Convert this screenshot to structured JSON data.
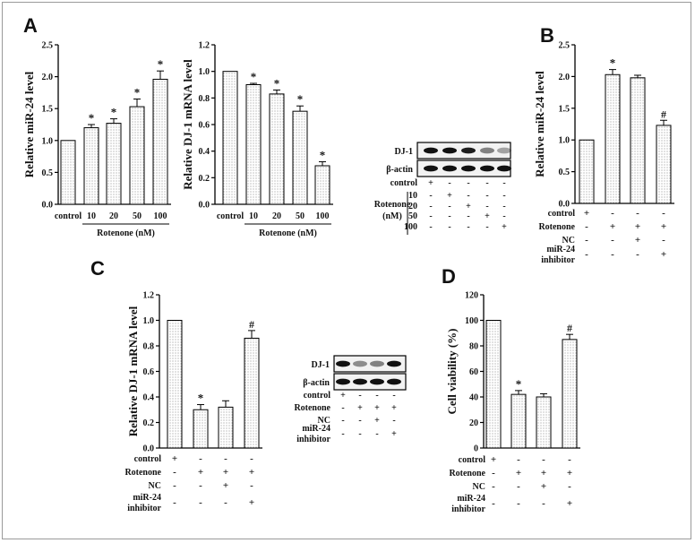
{
  "panels": {
    "A": "A",
    "B": "B",
    "C": "C",
    "D": "D"
  },
  "chart_data": [
    {
      "id": "A1",
      "type": "bar",
      "ylabel": "Relative miR-24 level",
      "categories": [
        "control",
        "10",
        "20",
        "50",
        "100"
      ],
      "group_label": "Rotenone (nM)",
      "values": [
        1.0,
        1.2,
        1.27,
        1.53,
        1.96
      ],
      "errors": [
        0.0,
        0.05,
        0.07,
        0.12,
        0.13
      ],
      "marks": [
        "",
        "*",
        "*",
        "*",
        "*"
      ],
      "ylim": [
        0.0,
        2.5
      ],
      "yticks": [
        "0.0",
        "0.5",
        "1.0",
        "1.5",
        "2.0",
        "2.5"
      ]
    },
    {
      "id": "A2",
      "type": "bar",
      "ylabel": "Relative DJ-1 mRNA level",
      "categories": [
        "control",
        "10",
        "20",
        "50",
        "100"
      ],
      "group_label": "Rotenone (nM)",
      "values": [
        1.0,
        0.9,
        0.83,
        0.7,
        0.29
      ],
      "errors": [
        0.0,
        0.01,
        0.03,
        0.04,
        0.03
      ],
      "marks": [
        "",
        "*",
        "*",
        "*",
        "*"
      ],
      "ylim": [
        0.0,
        1.2
      ],
      "yticks": [
        "0.0",
        "0.2",
        "0.4",
        "0.6",
        "0.8",
        "1.0",
        "1.2"
      ]
    },
    {
      "id": "B",
      "type": "bar",
      "ylabel": "Relative miR-24 level",
      "values": [
        1.0,
        2.03,
        1.98,
        1.23
      ],
      "errors": [
        0.0,
        0.08,
        0.04,
        0.08
      ],
      "marks": [
        "",
        "*",
        "",
        "#"
      ],
      "ylim": [
        0.0,
        2.5
      ],
      "yticks": [
        "0.0",
        "0.5",
        "1.0",
        "1.5",
        "2.0",
        "2.5"
      ],
      "conditions": [
        {
          "label": "control",
          "signs": [
            "+",
            "-",
            "-",
            "-"
          ]
        },
        {
          "label": "Rotenone",
          "signs": [
            "-",
            "+",
            "+",
            "+"
          ]
        },
        {
          "label": "NC",
          "signs": [
            "-",
            "-",
            "+",
            "-"
          ]
        },
        {
          "label": "miR-24\ninhibitor",
          "signs": [
            "-",
            "-",
            "-",
            "+"
          ]
        }
      ]
    },
    {
      "id": "C",
      "type": "bar",
      "ylabel": "Relative DJ-1 mRNA level",
      "values": [
        1.0,
        0.3,
        0.32,
        0.86
      ],
      "errors": [
        0.0,
        0.04,
        0.05,
        0.06
      ],
      "marks": [
        "",
        "*",
        "",
        "#"
      ],
      "ylim": [
        0.0,
        1.2
      ],
      "yticks": [
        "0.0",
        "0.2",
        "0.4",
        "0.6",
        "0.8",
        "1.0",
        "1.2"
      ],
      "conditions": [
        {
          "label": "control",
          "signs": [
            "+",
            "-",
            "-",
            "-"
          ]
        },
        {
          "label": "Rotenone",
          "signs": [
            "-",
            "+",
            "+",
            "+"
          ]
        },
        {
          "label": "NC",
          "signs": [
            "-",
            "-",
            "+",
            "-"
          ]
        },
        {
          "label": "miR-24\ninhibitor",
          "signs": [
            "-",
            "-",
            "-",
            "+"
          ]
        }
      ]
    },
    {
      "id": "D",
      "type": "bar",
      "ylabel": "Cell viability (%)",
      "values": [
        100,
        42,
        40,
        85
      ],
      "errors": [
        0,
        3,
        2.5,
        4
      ],
      "marks": [
        "",
        "*",
        "",
        "#"
      ],
      "ylim": [
        0,
        120
      ],
      "yticks": [
        "0",
        "20",
        "40",
        "60",
        "80",
        "100",
        "120"
      ],
      "conditions": [
        {
          "label": "control",
          "signs": [
            "+",
            "-",
            "-",
            "-"
          ]
        },
        {
          "label": "Rotenone",
          "signs": [
            "-",
            "+",
            "+",
            "+"
          ]
        },
        {
          "label": "NC",
          "signs": [
            "-",
            "-",
            "+",
            "-"
          ]
        },
        {
          "label": "miR-24\ninhibitor",
          "signs": [
            "-",
            "-",
            "-",
            "+"
          ]
        }
      ]
    }
  ],
  "blots": [
    {
      "id": "blot-A",
      "rows": [
        "DJ-1",
        "β-actin"
      ],
      "intensities": [
        [
          1,
          1,
          0.95,
          0.5,
          0.35
        ],
        [
          1,
          1,
          1,
          1,
          1
        ]
      ],
      "conditions": [
        {
          "label": "control",
          "signs": [
            "+",
            "-",
            "-",
            "-",
            "-"
          ]
        },
        {
          "label": "10",
          "signs": [
            "-",
            "+",
            "-",
            "-",
            "-"
          ]
        },
        {
          "label": "20",
          "signs": [
            "-",
            "-",
            "+",
            "-",
            "-"
          ]
        },
        {
          "label": "50",
          "signs": [
            "-",
            "-",
            "-",
            "+",
            "-"
          ]
        },
        {
          "label": "100",
          "signs": [
            "-",
            "-",
            "-",
            "-",
            "+"
          ]
        }
      ],
      "group_label": "Rotenone\n(nM)"
    },
    {
      "id": "blot-C",
      "rows": [
        "DJ-1",
        "β-actin"
      ],
      "intensities": [
        [
          1,
          0.45,
          0.5,
          1
        ],
        [
          1,
          1,
          1,
          1
        ]
      ],
      "conditions": [
        {
          "label": "control",
          "signs": [
            "+",
            "-",
            "-",
            "-"
          ]
        },
        {
          "label": "Rotenone",
          "signs": [
            "-",
            "+",
            "+",
            "+"
          ]
        },
        {
          "label": "NC",
          "signs": [
            "-",
            "-",
            "+",
            "-"
          ]
        },
        {
          "label": "miR-24\ninhibitor",
          "signs": [
            "-",
            "-",
            "-",
            "+"
          ]
        }
      ]
    }
  ]
}
